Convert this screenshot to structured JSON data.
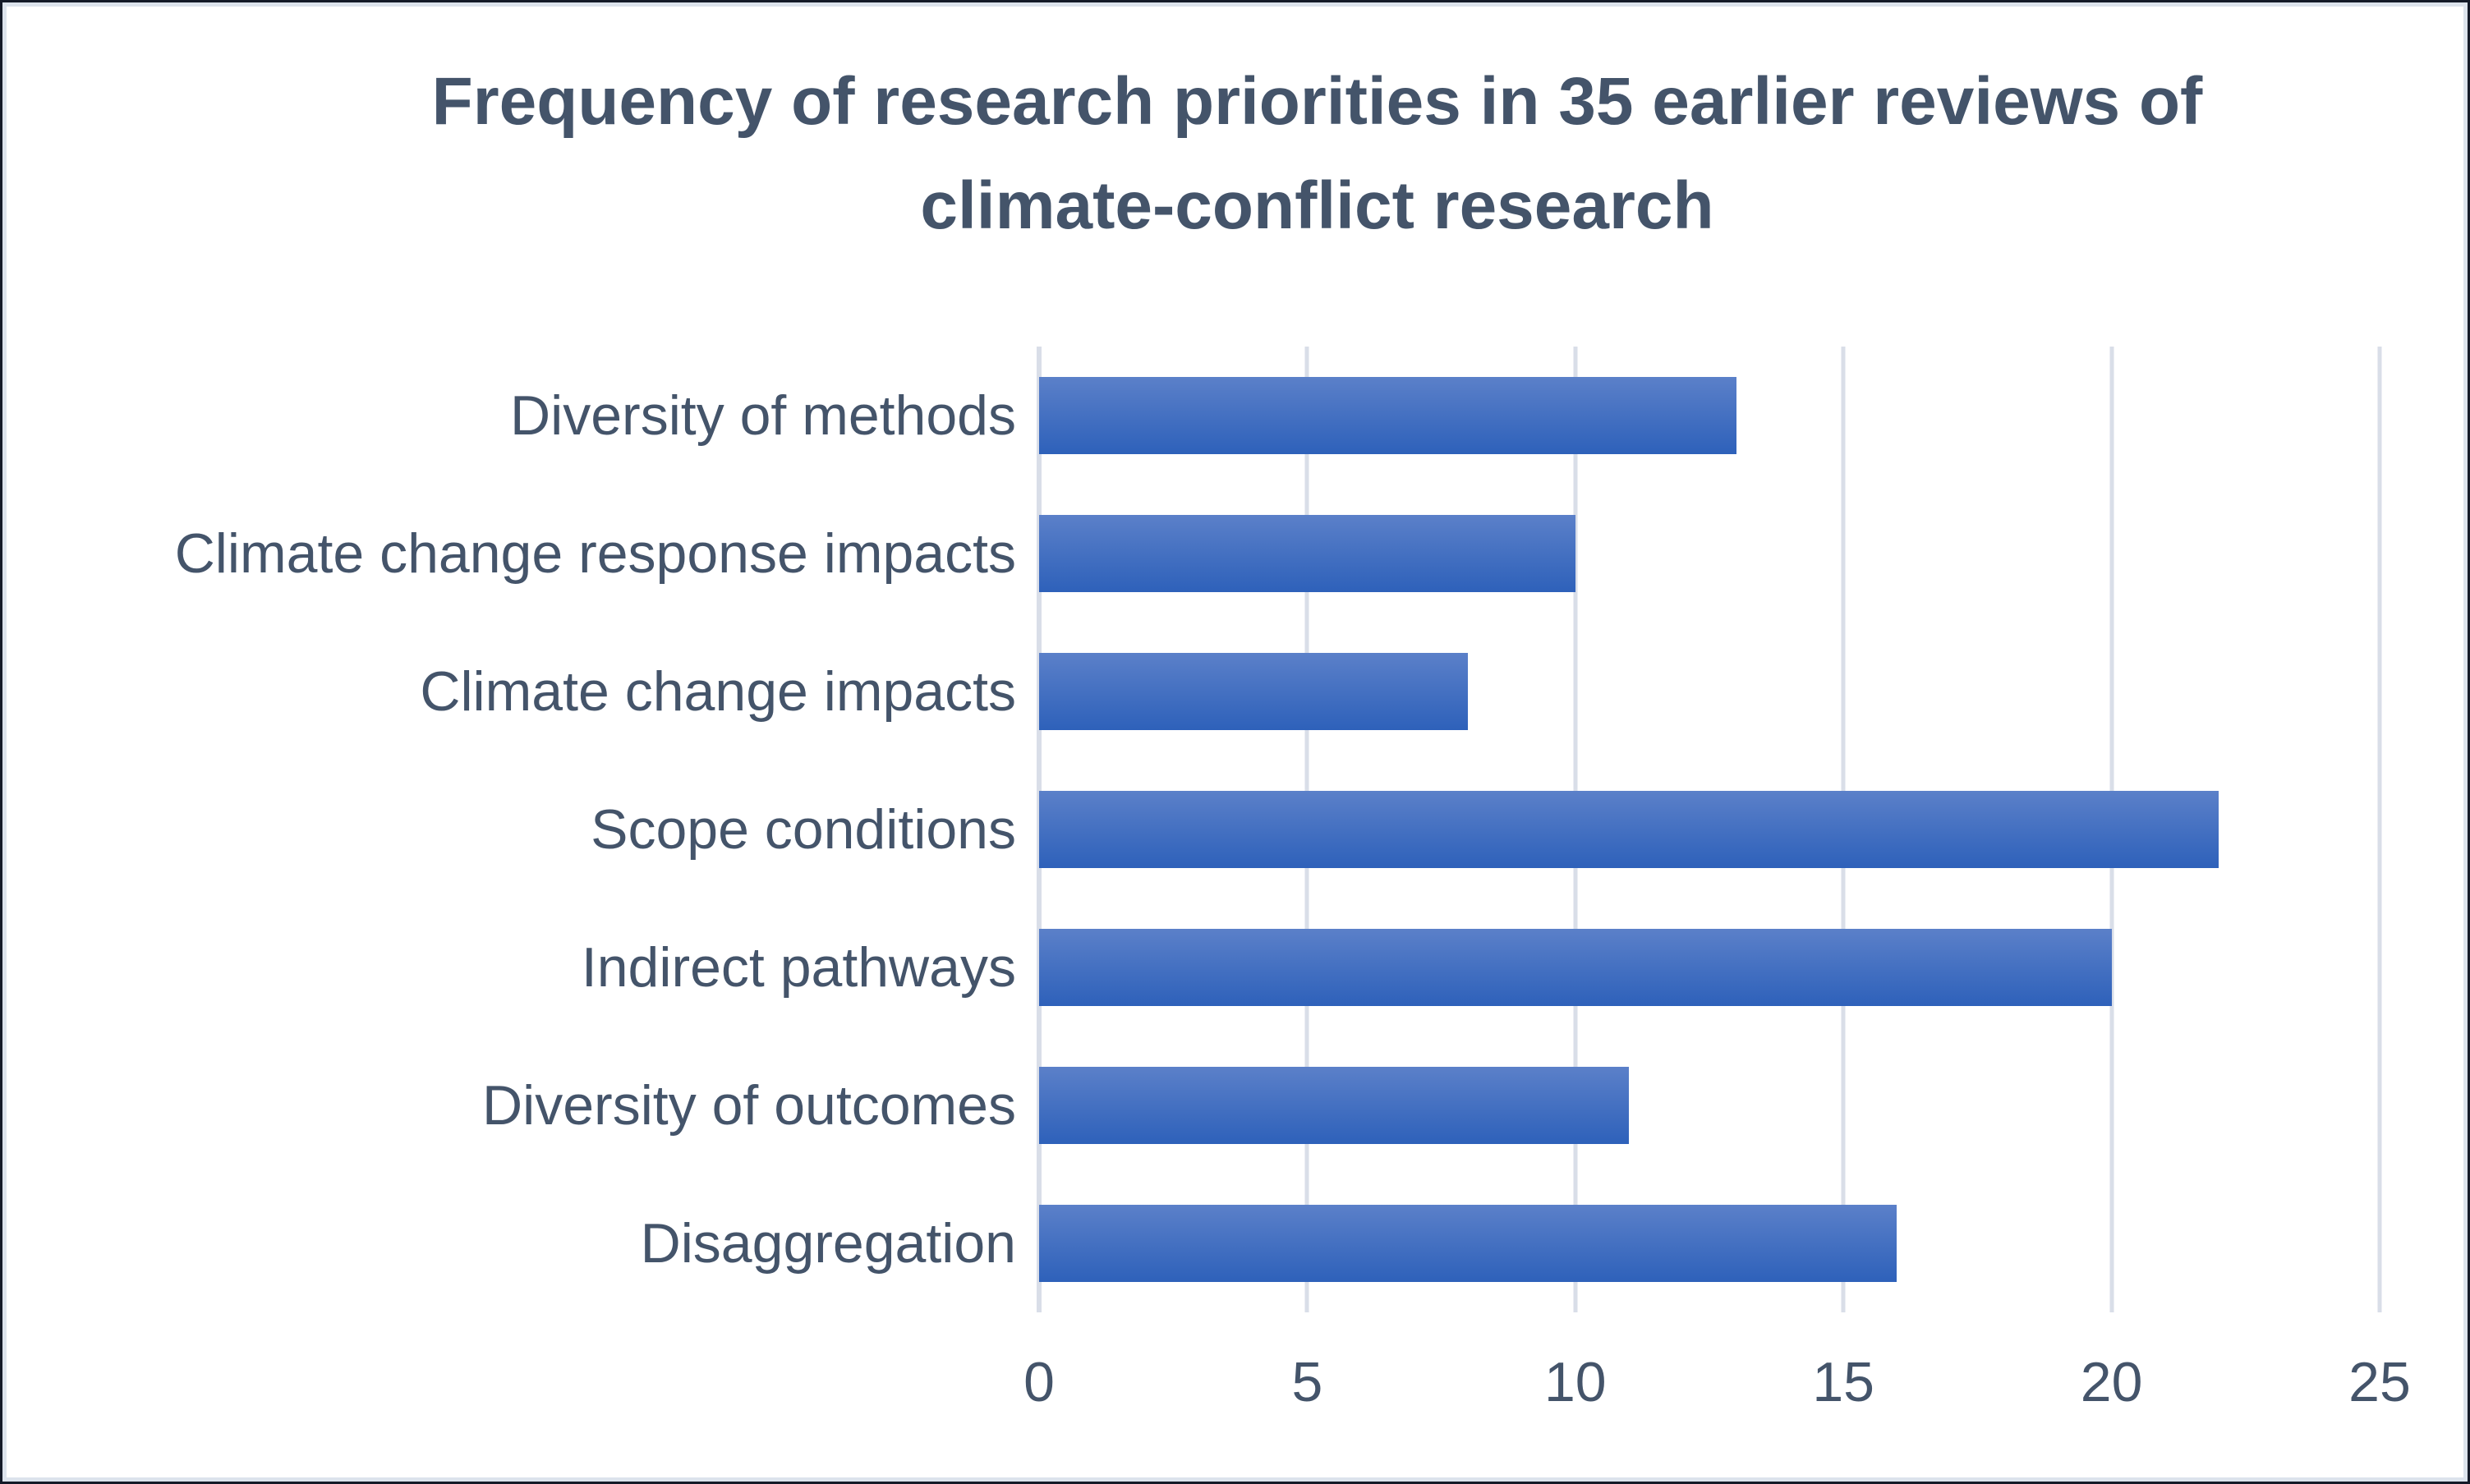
{
  "window": {
    "background": "#FFFFFF",
    "outer_border_color": "#141A28",
    "inner_border_color": "#DCE3EC"
  },
  "chart_data": {
    "type": "bar",
    "orientation": "horizontal",
    "title": "Frequency of research priorities in 35 earlier reviews of climate-conflict research",
    "title_lines": [
      "Frequency of research priorities in 35 earlier reviews of",
      "climate-conflict research"
    ],
    "categories": [
      "Diversity of methods",
      "Climate change response impacts",
      "Climate change impacts",
      "Scope conditions",
      "Indirect pathways",
      "Diversity of outcomes",
      "Disaggregation"
    ],
    "values": [
      13,
      10,
      8,
      22,
      20,
      11,
      16
    ],
    "xlabel": "",
    "ylabel": "",
    "xlim": [
      0,
      25
    ],
    "xticks": [
      0,
      5,
      10,
      15,
      20,
      25
    ],
    "grid": "vertical-gridlines-only",
    "legend_position": "none",
    "data_labels": "none",
    "styles": {
      "bar_gradient_top": "#5B80C9",
      "bar_gradient_bottom": "#2E61BA",
      "text_color": "#44546A",
      "gridline_color": "#D9DEE8",
      "plot_background": "#FFFFFF"
    }
  }
}
